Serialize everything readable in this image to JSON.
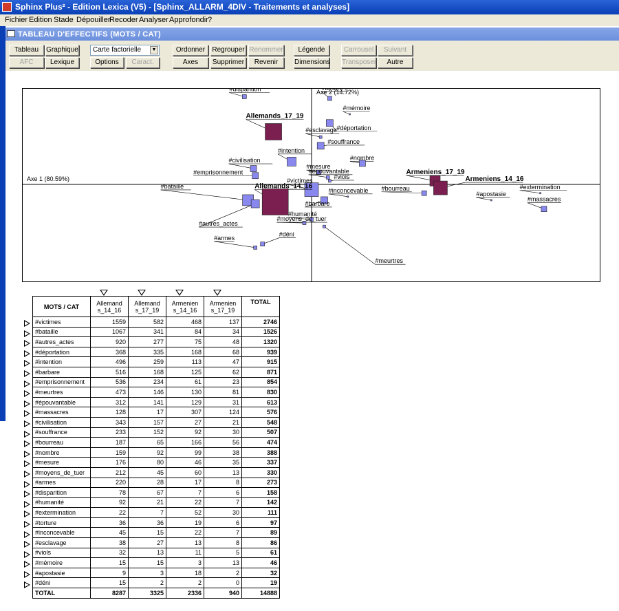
{
  "window": {
    "title": "Sphinx Plus² - Edition Lexica (V5) - [Sphinx_ALLARM_4DIV - Traitements et analyses]"
  },
  "menu": [
    "Fichier",
    "Edition",
    "Stade",
    "Dépouiller",
    "Recoder",
    "Analyser",
    "Approfondir",
    "?"
  ],
  "panel": {
    "title": "TABLEAU D'EFFECTIFS (MOTS / CAT)"
  },
  "toolbar": {
    "tableau": "Tableau",
    "graphique": "Graphique",
    "afc": "AFC",
    "lexique": "Lexique",
    "select_value": "Carte factorielle",
    "options": "Options",
    "caract": "Caract.",
    "ordonner": "Ordonner",
    "regrouper": "Regrouper",
    "renommer": "Renommer",
    "axes": "Axes",
    "supprimer": "Supprimer",
    "revenir": "Revenir",
    "legende": "Légende",
    "dimensions": "Dimensions",
    "carrousel": "Carrousel",
    "suivant": "Suivant",
    "transposer": "Transposer",
    "autre": "Autre"
  },
  "chart_data": {
    "type": "scatter",
    "xlabel": "Axe 1 (80.59%)",
    "ylabel": "Axe 2 (14.72%)",
    "colors": {
      "words": "#8888ee",
      "categories": "#7a1f4f"
    },
    "points": [
      {
        "label": "#disparition",
        "x": -0.37,
        "y": 0.5,
        "size": 6,
        "kind": "word"
      },
      {
        "label": "#torture",
        "x": 0.1,
        "y": 0.49,
        "size": 6,
        "kind": "word"
      },
      {
        "label": "#mémoire",
        "x": 0.21,
        "y": 0.4,
        "size": 2,
        "kind": "word"
      },
      {
        "label": "#déportation",
        "x": 0.1,
        "y": 0.35,
        "size": 10,
        "kind": "word"
      },
      {
        "label": "Allemands_17_19",
        "x": -0.21,
        "y": 0.3,
        "size": 24,
        "kind": "cat"
      },
      {
        "label": "#esclavage",
        "x": 0.05,
        "y": 0.27,
        "size": 4,
        "kind": "word"
      },
      {
        "label": "#souffrance",
        "x": 0.05,
        "y": 0.22,
        "size": 10,
        "kind": "word"
      },
      {
        "label": "#nombre",
        "x": 0.28,
        "y": 0.12,
        "size": 9,
        "kind": "word"
      },
      {
        "label": "#intention",
        "x": -0.11,
        "y": 0.13,
        "size": 13,
        "kind": "word"
      },
      {
        "label": "#mesure",
        "x": 0.04,
        "y": 0.07,
        "size": 6,
        "kind": "word"
      },
      {
        "label": "#civilisation",
        "x": -0.32,
        "y": 0.09,
        "size": 9,
        "kind": "word"
      },
      {
        "label": "#épouvantable",
        "x": 0.09,
        "y": 0.04,
        "size": 5,
        "kind": "word"
      },
      {
        "label": "Armeniens_17_19",
        "x": 0.68,
        "y": 0.02,
        "size": 15,
        "kind": "cat"
      },
      {
        "label": "#emprisonnement",
        "x": -0.31,
        "y": 0.05,
        "size": 9,
        "kind": "word"
      },
      {
        "label": "#victimes",
        "x": 0,
        "y": -0.03,
        "size": 20,
        "kind": "word"
      },
      {
        "label": "#viols",
        "x": 0.1,
        "y": 0.02,
        "size": 4,
        "kind": "word"
      },
      {
        "label": "Armeniens_14_16",
        "x": 0.71,
        "y": -0.02,
        "size": 20,
        "kind": "cat"
      },
      {
        "label": "Allemands_14_16",
        "x": -0.2,
        "y": -0.1,
        "size": 38,
        "kind": "cat"
      },
      {
        "label": "#bourreau",
        "x": 0.62,
        "y": -0.05,
        "size": 7,
        "kind": "word"
      },
      {
        "label": "#inconcevable",
        "x": 0.2,
        "y": -0.07,
        "size": 2,
        "kind": "word"
      },
      {
        "label": "#extermination",
        "x": 1.26,
        "y": -0.05,
        "size": 2,
        "kind": "word"
      },
      {
        "label": "#apostasie",
        "x": 0.99,
        "y": -0.09,
        "size": 2,
        "kind": "word"
      },
      {
        "label": "#bataille",
        "x": -0.35,
        "y": -0.09,
        "size": 16,
        "kind": "word"
      },
      {
        "label": "#autres_actes",
        "x": -0.31,
        "y": -0.11,
        "size": 12,
        "kind": "word"
      },
      {
        "label": "#barbare",
        "x": 0.07,
        "y": -0.09,
        "size": 10,
        "kind": "word"
      },
      {
        "label": "#massacres",
        "x": 1.28,
        "y": -0.14,
        "size": 8,
        "kind": "word"
      },
      {
        "label": "#humanité",
        "x": 0,
        "y": -0.2,
        "size": 5,
        "kind": "word"
      },
      {
        "label": "#meurtres",
        "x": 0.07,
        "y": -0.24,
        "size": 4,
        "kind": "word"
      },
      {
        "label": "#moyens_de_tuer",
        "x": -0.04,
        "y": -0.22,
        "size": 5,
        "kind": "word"
      },
      {
        "label": "#armes",
        "x": -0.31,
        "y": -0.36,
        "size": 5,
        "kind": "word"
      },
      {
        "label": "#déni",
        "x": -0.27,
        "y": -0.34,
        "size": 6,
        "kind": "word"
      }
    ]
  },
  "table": {
    "corner": "MOTS / CAT",
    "col_headers": [
      {
        "line1": "Allemand",
        "line2": "s_14_16"
      },
      {
        "line1": "Allemand",
        "line2": "s_17_19"
      },
      {
        "line1": "Armenien",
        "line2": "s_14_16"
      },
      {
        "line1": "Armenien",
        "line2": "s_17_19"
      }
    ],
    "total_header": "TOTAL",
    "rows": [
      {
        "label": "#victimes",
        "v": [
          "1559",
          "582",
          "468",
          "137"
        ],
        "total": "2746"
      },
      {
        "label": "#bataille",
        "v": [
          "1067",
          "341",
          "84",
          "34"
        ],
        "total": "1526"
      },
      {
        "label": "#autres_actes",
        "v": [
          "920",
          "277",
          "75",
          "48"
        ],
        "total": "1320"
      },
      {
        "label": "#déportation",
        "v": [
          "368",
          "335",
          "168",
          "68"
        ],
        "total": "939"
      },
      {
        "label": "#intention",
        "v": [
          "496",
          "259",
          "113",
          "47"
        ],
        "total": "915"
      },
      {
        "label": "#barbare",
        "v": [
          "516",
          "168",
          "125",
          "62"
        ],
        "total": "871"
      },
      {
        "label": "#emprisonnement",
        "v": [
          "536",
          "234",
          "61",
          "23"
        ],
        "total": "854"
      },
      {
        "label": "#meurtres",
        "v": [
          "473",
          "146",
          "130",
          "81"
        ],
        "total": "830"
      },
      {
        "label": "#épouvantable",
        "v": [
          "312",
          "141",
          "129",
          "31"
        ],
        "total": "613"
      },
      {
        "label": "#massacres",
        "v": [
          "128",
          "17",
          "307",
          "124"
        ],
        "total": "576"
      },
      {
        "label": "#civilisation",
        "v": [
          "343",
          "157",
          "27",
          "21"
        ],
        "total": "548"
      },
      {
        "label": "#souffrance",
        "v": [
          "233",
          "152",
          "92",
          "30"
        ],
        "total": "507"
      },
      {
        "label": "#bourreau",
        "v": [
          "187",
          "65",
          "166",
          "56"
        ],
        "total": "474"
      },
      {
        "label": "#nombre",
        "v": [
          "159",
          "92",
          "99",
          "38"
        ],
        "total": "388"
      },
      {
        "label": "#mesure",
        "v": [
          "176",
          "80",
          "46",
          "35"
        ],
        "total": "337"
      },
      {
        "label": "#moyens_de_tuer",
        "v": [
          "212",
          "45",
          "60",
          "13"
        ],
        "total": "330"
      },
      {
        "label": "#armes",
        "v": [
          "220",
          "28",
          "17",
          "8"
        ],
        "total": "273"
      },
      {
        "label": "#disparition",
        "v": [
          "78",
          "67",
          "7",
          "6"
        ],
        "total": "158"
      },
      {
        "label": "#humanité",
        "v": [
          "92",
          "21",
          "22",
          "7"
        ],
        "total": "142"
      },
      {
        "label": "#extermination",
        "v": [
          "22",
          "7",
          "52",
          "30"
        ],
        "total": "111"
      },
      {
        "label": "#torture",
        "v": [
          "36",
          "36",
          "19",
          "6"
        ],
        "total": "97"
      },
      {
        "label": "#inconcevable",
        "v": [
          "45",
          "15",
          "22",
          "7"
        ],
        "total": "89"
      },
      {
        "label": "#esclavage",
        "v": [
          "38",
          "27",
          "13",
          "8"
        ],
        "total": "86"
      },
      {
        "label": "#viols",
        "v": [
          "32",
          "13",
          "11",
          "5"
        ],
        "total": "61"
      },
      {
        "label": "#mémoire",
        "v": [
          "15",
          "15",
          "3",
          "13"
        ],
        "total": "46"
      },
      {
        "label": "#apostasie",
        "v": [
          "9",
          "3",
          "18",
          "2"
        ],
        "total": "32"
      },
      {
        "label": "#déni",
        "v": [
          "15",
          "2",
          "2",
          "0"
        ],
        "total": "19"
      }
    ],
    "total_row": {
      "label": "TOTAL",
      "v": [
        "8287",
        "3325",
        "2336",
        "940"
      ],
      "total": "14888"
    }
  }
}
